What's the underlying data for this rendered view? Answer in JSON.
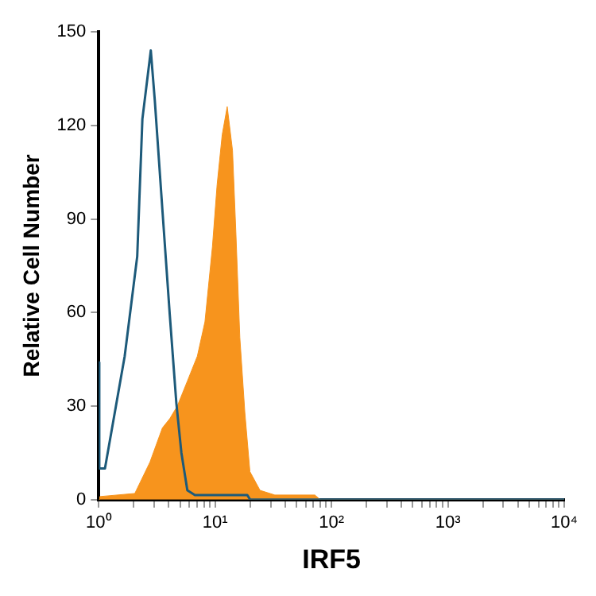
{
  "chart_data": {
    "type": "line",
    "xlabel": "IRF5",
    "ylabel": "Relative Cell Number",
    "log": "x",
    "grid": false,
    "marker": "none",
    "xlim": [
      1,
      10000
    ],
    "ylim": [
      0,
      150
    ],
    "xticks": [
      {
        "value": 1,
        "label": "10⁰"
      },
      {
        "value": 2,
        "label": null
      },
      {
        "value": 3,
        "label": null
      },
      {
        "value": 4,
        "label": null
      },
      {
        "value": 5,
        "label": null
      },
      {
        "value": 6,
        "label": null
      },
      {
        "value": 7,
        "label": null
      },
      {
        "value": 8,
        "label": null
      },
      {
        "value": 9,
        "label": null
      },
      {
        "value": 10,
        "label": "10¹"
      },
      {
        "value": 20,
        "label": null
      },
      {
        "value": 30,
        "label": null
      },
      {
        "value": 40,
        "label": null
      },
      {
        "value": 50,
        "label": null
      },
      {
        "value": 60,
        "label": null
      },
      {
        "value": 70,
        "label": null
      },
      {
        "value": 80,
        "label": null
      },
      {
        "value": 90,
        "label": null
      },
      {
        "value": 100,
        "label": "10²"
      },
      {
        "value": 200,
        "label": null
      },
      {
        "value": 300,
        "label": null
      },
      {
        "value": 400,
        "label": null
      },
      {
        "value": 500,
        "label": null
      },
      {
        "value": 600,
        "label": null
      },
      {
        "value": 700,
        "label": null
      },
      {
        "value": 800,
        "label": null
      },
      {
        "value": 900,
        "label": null
      },
      {
        "value": 1000,
        "label": "10³"
      },
      {
        "value": 2000,
        "label": null
      },
      {
        "value": 3000,
        "label": null
      },
      {
        "value": 4000,
        "label": null
      },
      {
        "value": 5000,
        "label": null
      },
      {
        "value": 6000,
        "label": null
      },
      {
        "value": 7000,
        "label": null
      },
      {
        "value": 8000,
        "label": null
      },
      {
        "value": 9000,
        "label": null
      },
      {
        "value": 10000,
        "label": "10⁴"
      }
    ],
    "yticks": [
      0,
      30,
      60,
      90,
      120,
      150
    ],
    "series": [
      {
        "type": "area",
        "color": "#f7941d",
        "x": [
          1,
          1.02,
          2.04,
          2.75,
          3.52,
          4.08,
          4.73,
          5.77,
          7.03,
          8.17,
          9.47,
          10.4,
          11.5,
          12.7,
          14.1,
          15.1,
          16.3,
          18,
          19.9,
          24.3,
          32.6,
          72,
          80,
          10000
        ],
        "values": [
          0,
          1,
          2,
          12,
          23,
          26,
          30,
          38,
          46,
          57,
          81,
          101,
          117,
          126,
          112,
          85,
          52,
          28,
          9,
          3,
          1.5,
          1.5,
          0,
          0
        ]
      },
      {
        "type": "line",
        "color": "#1d5a7a",
        "x": [
          1,
          1.01,
          1.13,
          1.67,
          2.14,
          2.37,
          2.8,
          3.03,
          3.52,
          4.08,
          4.64,
          5.13,
          5.77,
          6.7,
          18.9,
          20,
          10000
        ],
        "values": [
          44,
          10,
          10,
          46,
          78,
          122,
          144,
          128,
          93,
          59,
          31,
          15,
          3,
          1.5,
          1.5,
          0,
          0
        ]
      }
    ]
  }
}
